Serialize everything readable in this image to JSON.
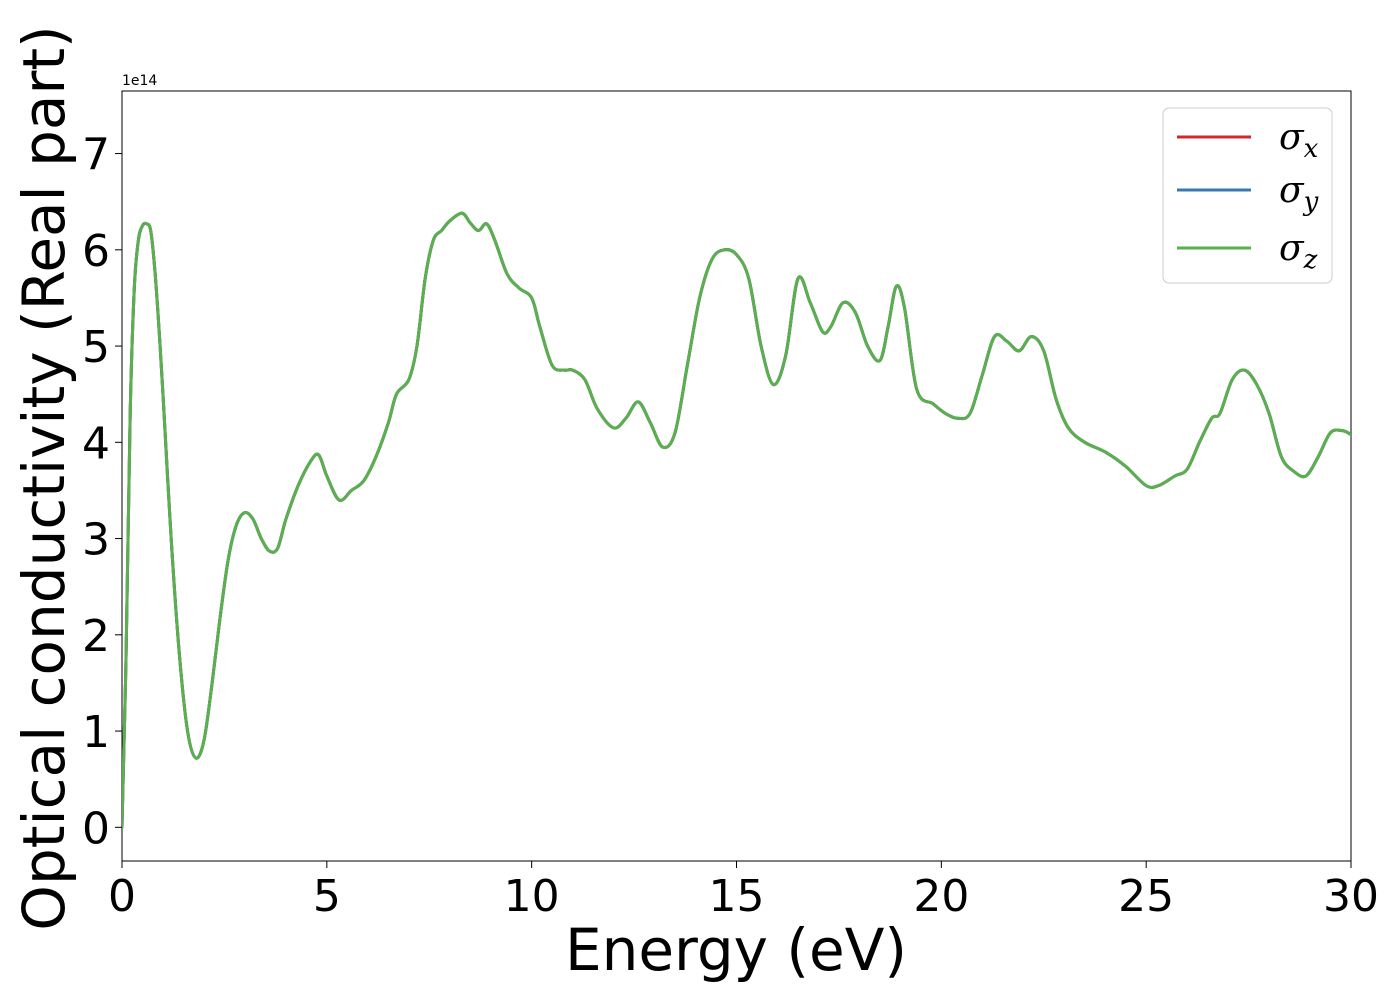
{
  "chart_data": {
    "type": "line",
    "xlabel": "Energy (eV)",
    "ylabel": "Optical conductivity (Real part)",
    "y_offset_label": "1e14",
    "xlim": [
      0,
      30
    ],
    "ylim": [
      -0.35,
      7.65
    ],
    "x_ticks": [
      0,
      5,
      10,
      15,
      20,
      25,
      30
    ],
    "y_ticks": [
      0,
      1,
      2,
      3,
      4,
      5,
      6,
      7
    ],
    "grid": false,
    "legend_position": "top-right",
    "series": [
      {
        "name": "σx",
        "symbol": "σ",
        "sub": "x",
        "color": "#d62728"
      },
      {
        "name": "σy",
        "symbol": "σ",
        "sub": "y",
        "color": "#3a78b0"
      },
      {
        "name": "σz",
        "symbol": "σ",
        "sub": "z",
        "color": "#5aaf4f"
      }
    ],
    "x": [
      0,
      0.1,
      0.2,
      0.3,
      0.4,
      0.5,
      0.6,
      0.7,
      0.8,
      0.9,
      1.0,
      1.2,
      1.4,
      1.6,
      1.8,
      2.0,
      2.2,
      2.4,
      2.6,
      2.8,
      3.0,
      3.2,
      3.4,
      3.6,
      3.8,
      4.0,
      4.3,
      4.6,
      4.8,
      5.0,
      5.3,
      5.6,
      5.9,
      6.2,
      6.5,
      6.7,
      7.0,
      7.2,
      7.4,
      7.6,
      7.8,
      8.0,
      8.3,
      8.5,
      8.7,
      8.9,
      9.1,
      9.4,
      9.7,
      10.0,
      10.2,
      10.5,
      10.8,
      11.0,
      11.3,
      11.6,
      12.0,
      12.3,
      12.6,
      12.9,
      13.2,
      13.5,
      13.8,
      14.1,
      14.4,
      14.7,
      15.0,
      15.3,
      15.6,
      15.9,
      16.2,
      16.5,
      16.8,
      17.1,
      17.3,
      17.6,
      17.9,
      18.2,
      18.5,
      18.7,
      18.9,
      19.1,
      19.4,
      19.8,
      20.1,
      20.4,
      20.7,
      21.0,
      21.3,
      21.6,
      21.9,
      22.2,
      22.5,
      22.8,
      23.1,
      23.5,
      24.0,
      24.5,
      25.0,
      25.3,
      25.7,
      26.0,
      26.3,
      26.6,
      26.8,
      27.1,
      27.4,
      27.7,
      28.0,
      28.3,
      28.6,
      28.9,
      29.2,
      29.5,
      29.8,
      30.0
    ],
    "y": [
      0.0,
      1.8,
      4.3,
      5.6,
      6.1,
      6.25,
      6.27,
      6.2,
      5.8,
      5.2,
      4.5,
      3.0,
      1.8,
      1.0,
      0.72,
      0.9,
      1.5,
      2.2,
      2.8,
      3.15,
      3.27,
      3.2,
      3.0,
      2.87,
      2.9,
      3.2,
      3.55,
      3.8,
      3.87,
      3.65,
      3.4,
      3.5,
      3.6,
      3.85,
      4.2,
      4.5,
      4.65,
      5.0,
      5.7,
      6.1,
      6.2,
      6.3,
      6.38,
      6.28,
      6.2,
      6.27,
      6.1,
      5.75,
      5.6,
      5.5,
      5.2,
      4.8,
      4.75,
      4.75,
      4.65,
      4.35,
      4.15,
      4.25,
      4.42,
      4.2,
      3.95,
      4.1,
      4.8,
      5.5,
      5.9,
      6.0,
      5.95,
      5.7,
      5.0,
      4.6,
      4.9,
      5.7,
      5.45,
      5.15,
      5.2,
      5.45,
      5.35,
      5.0,
      4.85,
      5.2,
      5.62,
      5.4,
      4.55,
      4.4,
      4.3,
      4.25,
      4.3,
      4.7,
      5.1,
      5.05,
      4.95,
      5.1,
      4.95,
      4.45,
      4.15,
      4.0,
      3.9,
      3.75,
      3.55,
      3.55,
      3.65,
      3.72,
      4.0,
      4.25,
      4.3,
      4.65,
      4.75,
      4.6,
      4.3,
      3.85,
      3.7,
      3.65,
      3.85,
      4.1,
      4.12,
      4.08
    ]
  }
}
